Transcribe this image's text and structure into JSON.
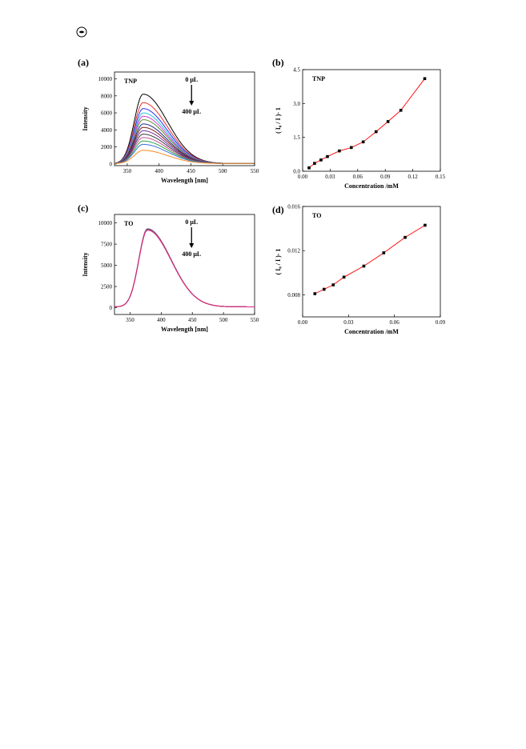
{
  "page": {
    "logo_icon": "circled-logo-icon"
  },
  "chart_data": [
    {
      "id": "a",
      "type": "line",
      "panel_label": "(a)",
      "annotation": "TNP",
      "arrow_top_label": "0 μL",
      "arrow_bottom_label": "400 μL",
      "xlabel": "Wavelength [nm]",
      "ylabel": "Intensity",
      "xlim": [
        330,
        550
      ],
      "ylim": [
        -200,
        10800
      ],
      "xticks": [
        350,
        400,
        450,
        500,
        550
      ],
      "yticks": [
        0,
        2000,
        4000,
        6000,
        8000,
        10000
      ],
      "peak_x": 375,
      "baseline": 50,
      "series": [
        {
          "color": "#000000",
          "peak": 8200
        },
        {
          "color": "#e8322a",
          "peak": 7200
        },
        {
          "color": "#2d2df0",
          "peak": 6500
        },
        {
          "color": "#27c6e0",
          "peak": 6000
        },
        {
          "color": "#d63ad8",
          "peak": 5600
        },
        {
          "color": "#5e8e2a",
          "peak": 5200
        },
        {
          "color": "#1d2a8c",
          "peak": 4700
        },
        {
          "color": "#7b1f1f",
          "peak": 4300
        },
        {
          "color": "#7a2fa0",
          "peak": 3900
        },
        {
          "color": "#3a3a3a",
          "peak": 3500
        },
        {
          "color": "#c44d8f",
          "peak": 3100
        },
        {
          "color": "#2aa24b",
          "peak": 2700
        },
        {
          "color": "#3a6fd8",
          "peak": 2300
        },
        {
          "color": "#f58a1f",
          "peak": 1600
        }
      ]
    },
    {
      "id": "b",
      "type": "scatter",
      "panel_label": "(b)",
      "annotation": "TNP",
      "xlabel": "Concentration /mM",
      "ylabel": "( I₀ / I )- 1",
      "xlim": [
        0.0,
        0.15
      ],
      "ylim": [
        0.0,
        4.5
      ],
      "xticks": [
        0.0,
        0.03,
        0.06,
        0.09,
        0.12,
        0.15
      ],
      "xtick_labels": [
        "0.00",
        "0.03",
        "0.06",
        "0.09",
        "0.12",
        "0.15"
      ],
      "yticks": [
        0.0,
        1.5,
        3.0,
        4.5
      ],
      "ytick_labels": [
        "0.0",
        "1.5",
        "3.0",
        "4.5"
      ],
      "line_color": "#ff0000",
      "x": [
        0.007,
        0.013,
        0.02,
        0.027,
        0.04,
        0.053,
        0.066,
        0.08,
        0.093,
        0.107,
        0.133
      ],
      "y": [
        0.15,
        0.35,
        0.5,
        0.65,
        0.9,
        1.05,
        1.3,
        1.75,
        2.2,
        2.7,
        4.1
      ]
    },
    {
      "id": "c",
      "type": "line",
      "panel_label": "(c)",
      "annotation": "TO",
      "arrow_top_label": "0 μL",
      "arrow_bottom_label": "400 μL",
      "xlabel": "Wavelength [nm]",
      "ylabel": "Intensity",
      "xlim": [
        325,
        550
      ],
      "ylim": [
        -800,
        11000
      ],
      "xticks": [
        350,
        400,
        450,
        500,
        550
      ],
      "yticks": [
        0,
        2500,
        5000,
        7500,
        10000
      ],
      "peak_x": 378,
      "baseline": 100,
      "series": [
        {
          "color": "#000000",
          "peak": 9300
        },
        {
          "color": "#e8322a",
          "peak": 9280
        },
        {
          "color": "#2d2df0",
          "peak": 9260
        },
        {
          "color": "#27c6e0",
          "peak": 9240
        },
        {
          "color": "#d63ad8",
          "peak": 9220
        },
        {
          "color": "#5e8e2a",
          "peak": 9200
        },
        {
          "color": "#1d2a8c",
          "peak": 9180
        },
        {
          "color": "#f58a1f",
          "peak": 9160
        },
        {
          "color": "#e0218a",
          "peak": 9150
        }
      ]
    },
    {
      "id": "d",
      "type": "scatter",
      "panel_label": "(d)",
      "annotation": "TO",
      "xlabel": "Concentration /mM",
      "ylabel": "( I₀ / I )- 1",
      "xlim": [
        0.0,
        0.09
      ],
      "ylim": [
        0.006,
        0.016
      ],
      "xticks": [
        0.0,
        0.03,
        0.06,
        0.09
      ],
      "xtick_labels": [
        "0.00",
        "0.03",
        "0.06",
        "0.09"
      ],
      "yticks": [
        0.008,
        0.012,
        0.016
      ],
      "ytick_labels": [
        "0.008",
        "0.012",
        "0.016"
      ],
      "line_color": "#ff0000",
      "x": [
        0.008,
        0.014,
        0.02,
        0.027,
        0.04,
        0.053,
        0.067,
        0.08
      ],
      "y": [
        0.0081,
        0.0085,
        0.0089,
        0.0096,
        0.0106,
        0.0118,
        0.0132,
        0.0143
      ]
    }
  ]
}
